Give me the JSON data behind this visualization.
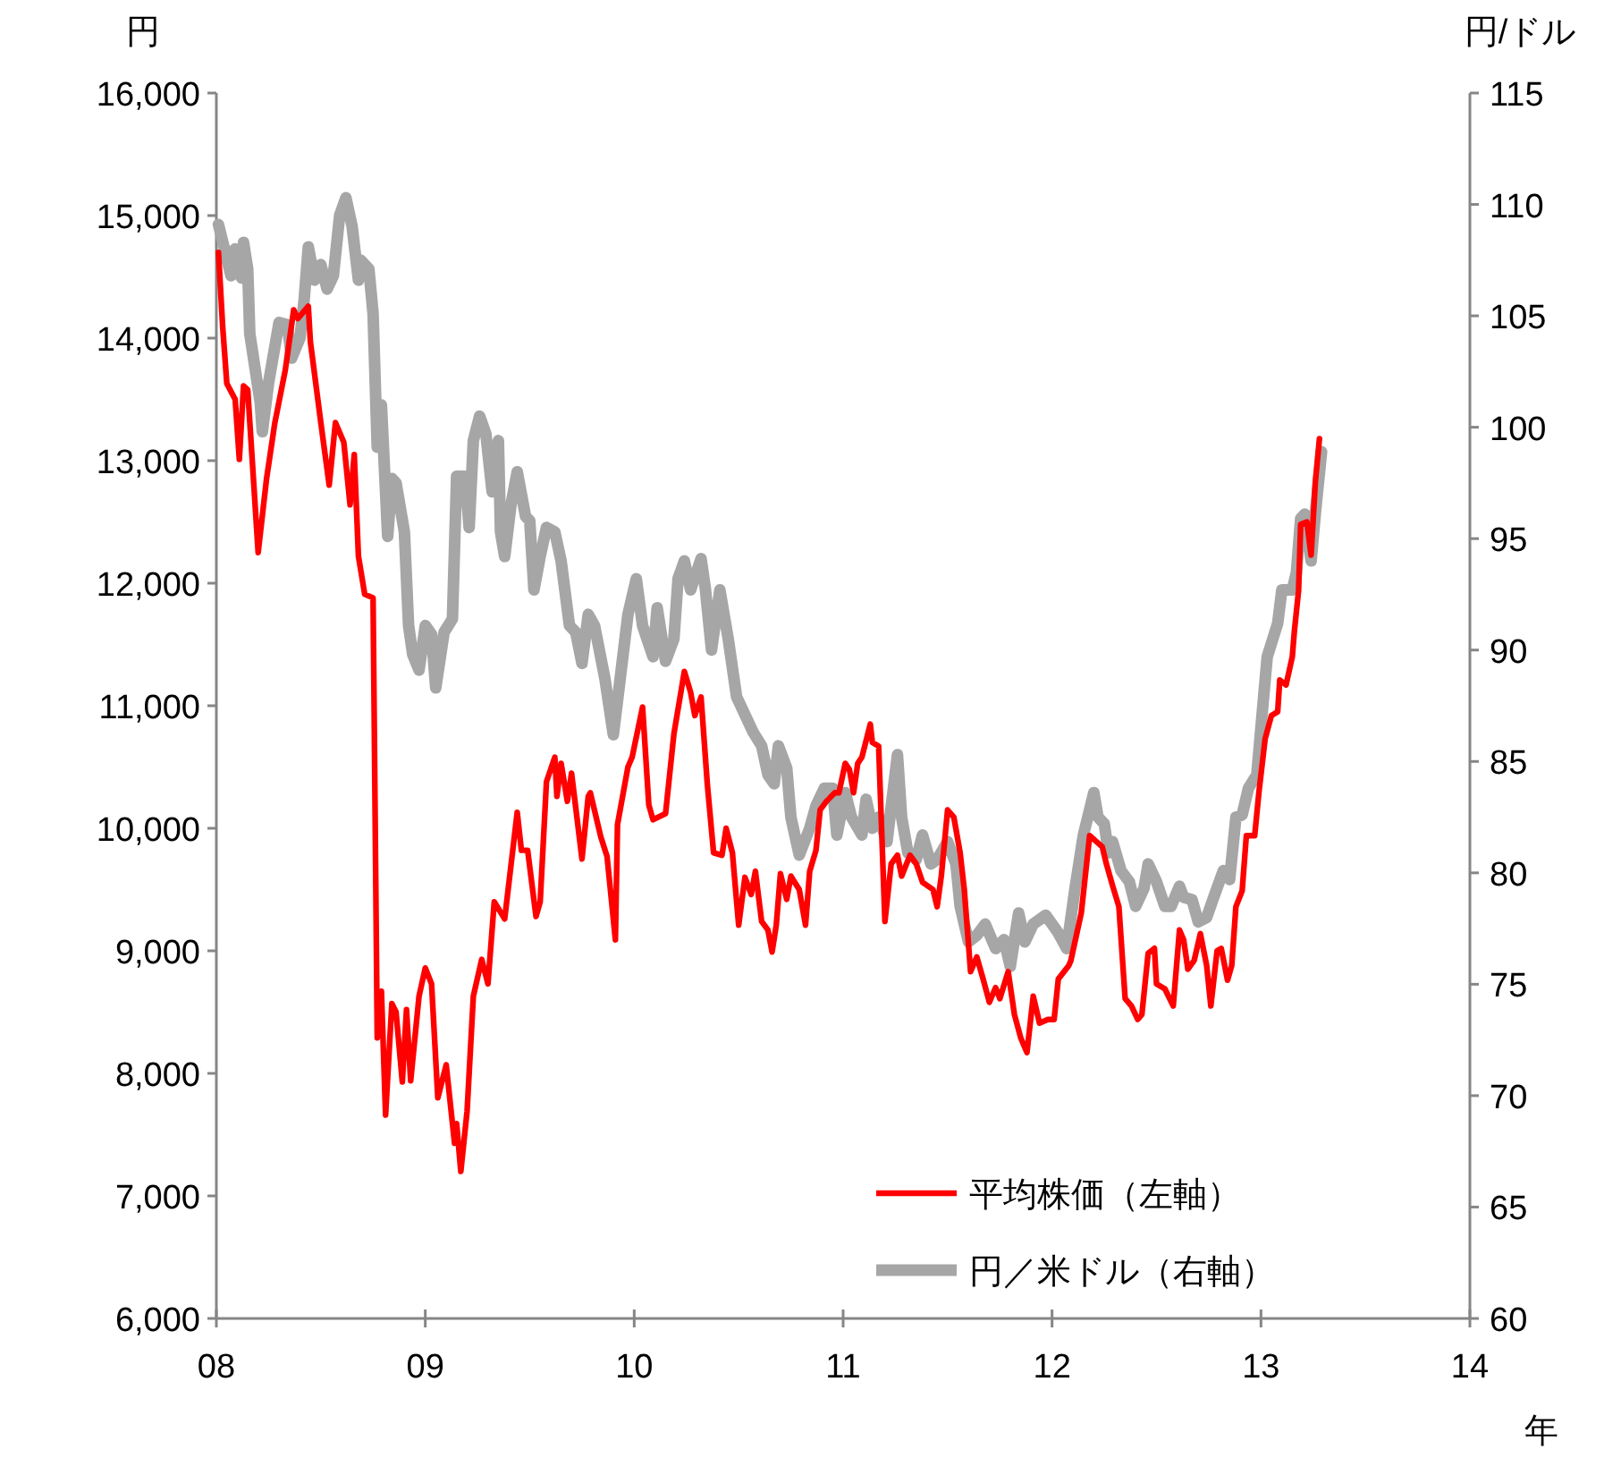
{
  "chart_data": {
    "type": "line",
    "ylabel": "円",
    "y2label": "円/ドル",
    "xlabel": "年",
    "legend": "bottom right",
    "xlim": [
      2008,
      2014
    ],
    "xticks": [
      {
        "value": 2008,
        "label": "08"
      },
      {
        "value": 2009,
        "label": "09"
      },
      {
        "value": 2010,
        "label": "10"
      },
      {
        "value": 2011,
        "label": "11"
      },
      {
        "value": 2012,
        "label": "12"
      },
      {
        "value": 2013,
        "label": "13"
      },
      {
        "value": 2014,
        "label": "14"
      }
    ],
    "ylim": [
      6000,
      16000
    ],
    "yticks": [
      {
        "value": 6000,
        "label": "6,000"
      },
      {
        "value": 7000,
        "label": "7,000"
      },
      {
        "value": 8000,
        "label": "8,000"
      },
      {
        "value": 9000,
        "label": "9,000"
      },
      {
        "value": 10000,
        "label": "10,000"
      },
      {
        "value": 11000,
        "label": "11,000"
      },
      {
        "value": 12000,
        "label": "12,000"
      },
      {
        "value": 13000,
        "label": "13,000"
      },
      {
        "value": 14000,
        "label": "14,000"
      },
      {
        "value": 15000,
        "label": "15,000"
      },
      {
        "value": 16000,
        "label": "16,000"
      }
    ],
    "y2lim": [
      60,
      115
    ],
    "y2ticks": [
      60,
      65,
      70,
      75,
      80,
      85,
      90,
      95,
      100,
      105,
      110,
      115
    ],
    "series": [
      {
        "name": "平均株価（左軸）",
        "color": "#ff0000",
        "axis": "y",
        "x": [
          2008.01,
          2008.03,
          2008.05,
          2008.09,
          2008.11,
          2008.13,
          2008.15,
          2008.2,
          2008.24,
          2008.28,
          2008.33,
          2008.37,
          2008.39,
          2008.44,
          2008.45,
          2008.5,
          2008.54,
          2008.57,
          2008.61,
          2008.64,
          2008.66,
          2008.68,
          2008.71,
          2008.75,
          2008.77,
          2008.79,
          2008.81,
          2008.84,
          2008.86,
          2008.89,
          2008.91,
          2008.93,
          2008.97,
          2009.0,
          2009.03,
          2009.06,
          2009.1,
          2009.14,
          2009.15,
          2009.17,
          2009.2,
          2009.23,
          2009.27,
          2009.3,
          2009.33,
          2009.38,
          2009.44,
          2009.46,
          2009.49,
          2009.53,
          2009.55,
          2009.58,
          2009.62,
          2009.63,
          2009.65,
          2009.68,
          2009.7,
          2009.75,
          2009.78,
          2009.79,
          2009.84,
          2009.87,
          2009.91,
          2009.92,
          2009.97,
          2009.99,
          2010.04,
          2010.07,
          2010.09,
          2010.15,
          2010.19,
          2010.24,
          2010.27,
          2010.29,
          2010.32,
          2010.35,
          2010.38,
          2010.42,
          2010.44,
          2010.47,
          2010.5,
          2010.53,
          2010.56,
          2010.58,
          2010.61,
          2010.64,
          2010.66,
          2010.68,
          2010.7,
          2010.73,
          2010.75,
          2010.79,
          2010.82,
          2010.84,
          2010.87,
          2010.89,
          2010.92,
          2010.96,
          2010.98,
          2011.01,
          2011.03,
          2011.05,
          2011.07,
          2011.09,
          2011.13,
          2011.14,
          2011.17,
          2011.2,
          2011.23,
          2011.26,
          2011.28,
          2011.32,
          2011.35,
          2011.38,
          2011.43,
          2011.45,
          2011.47,
          2011.5,
          2011.53,
          2011.56,
          2011.58,
          2011.61,
          2011.64,
          2011.67,
          2011.7,
          2011.73,
          2011.75,
          2011.79,
          2011.82,
          2011.85,
          2011.88,
          2011.91,
          2011.94,
          2011.98,
          2012.01,
          2012.03,
          2012.08,
          2012.09,
          2012.14,
          2012.18,
          2012.24,
          2012.26,
          2012.29,
          2012.32,
          2012.35,
          2012.38,
          2012.41,
          2012.43,
          2012.46,
          2012.49,
          2012.5,
          2012.54,
          2012.58,
          2012.61,
          2012.63,
          2012.65,
          2012.68,
          2012.71,
          2012.74,
          2012.76,
          2012.79,
          2012.81,
          2012.84,
          2012.86,
          2012.88,
          2012.91,
          2012.93,
          2012.97,
          2012.99,
          2013.02,
          2013.05,
          2013.08,
          2013.09,
          2013.12,
          2013.15,
          2013.16,
          2013.18,
          2013.19,
          2013.22,
          2013.24,
          2013.26,
          2013.28
        ],
        "values": [
          14700,
          14100,
          13630,
          13500,
          13010,
          13610,
          13580,
          12250,
          12850,
          13310,
          13740,
          14230,
          14160,
          14260,
          13970,
          13310,
          12800,
          13310,
          13150,
          12640,
          13050,
          12220,
          11910,
          11880,
          8290,
          8670,
          7660,
          8570,
          8500,
          7930,
          8520,
          7940,
          8630,
          8860,
          8730,
          7800,
          8070,
          7430,
          7590,
          7200,
          7690,
          8630,
          8930,
          8730,
          9400,
          9260,
          10130,
          9820,
          9820,
          9280,
          9400,
          10380,
          10580,
          10260,
          10530,
          10220,
          10450,
          9750,
          10260,
          10290,
          9930,
          9770,
          9090,
          10030,
          10500,
          10580,
          10990,
          10190,
          10070,
          10120,
          10770,
          11280,
          11110,
          10920,
          11070,
          10360,
          9800,
          9780,
          10000,
          9800,
          9210,
          9600,
          9460,
          9650,
          9240,
          9170,
          8990,
          9210,
          9630,
          9420,
          9610,
          9500,
          9210,
          9650,
          9820,
          10150,
          10220,
          10290,
          10290,
          10530,
          10480,
          10290,
          10530,
          10580,
          10850,
          10700,
          10670,
          9240,
          9710,
          9780,
          9610,
          9780,
          9710,
          9560,
          9500,
          9360,
          9610,
          10150,
          10090,
          9800,
          9500,
          8830,
          8950,
          8770,
          8580,
          8700,
          8610,
          8830,
          8480,
          8290,
          8170,
          8630,
          8410,
          8440,
          8440,
          8770,
          8880,
          8920,
          9310,
          9940,
          9850,
          9710,
          9530,
          9360,
          8610,
          8550,
          8440,
          8480,
          8980,
          9020,
          8730,
          8690,
          8550,
          9170,
          9090,
          8850,
          8920,
          9140,
          8880,
          8550,
          9000,
          9020,
          8760,
          8880,
          9360,
          9490,
          9940,
          9940,
          10290,
          10730,
          10920,
          10950,
          11210,
          11170,
          11400,
          11610,
          11940,
          12480,
          12500,
          12230,
          12820,
          13180
        ]
      },
      {
        "name": "円／米ドル（右軸）",
        "color": "#a6a6a6",
        "axis": "y2",
        "x": [
          2008.01,
          2008.07,
          2008.09,
          2008.12,
          2008.13,
          2008.15,
          2008.16,
          2008.21,
          2008.22,
          2008.25,
          2008.3,
          2008.34,
          2008.36,
          2008.4,
          2008.42,
          2008.44,
          2008.47,
          2008.5,
          2008.53,
          2008.56,
          2008.59,
          2008.62,
          2008.65,
          2008.68,
          2008.69,
          2008.73,
          2008.75,
          2008.77,
          2008.79,
          2008.82,
          2008.84,
          2008.86,
          2008.9,
          2008.92,
          2008.94,
          2008.97,
          2009.0,
          2009.03,
          2009.05,
          2009.09,
          2009.13,
          2009.15,
          2009.19,
          2009.21,
          2009.23,
          2009.26,
          2009.29,
          2009.32,
          2009.35,
          2009.36,
          2009.38,
          2009.41,
          2009.44,
          2009.48,
          2009.5,
          2009.52,
          2009.55,
          2009.58,
          2009.62,
          2009.65,
          2009.69,
          2009.72,
          2009.75,
          2009.78,
          2009.81,
          2009.86,
          2009.9,
          2009.93,
          2009.97,
          2010.01,
          2010.04,
          2010.09,
          2010.11,
          2010.15,
          2010.19,
          2010.21,
          2010.24,
          2010.27,
          2010.32,
          2010.34,
          2010.37,
          2010.41,
          2010.45,
          2010.49,
          2010.53,
          2010.57,
          2010.61,
          2010.64,
          2010.67,
          2010.69,
          2010.73,
          2010.75,
          2010.79,
          2010.84,
          2010.87,
          2010.91,
          2010.95,
          2010.97,
          2011.01,
          2011.04,
          2011.09,
          2011.11,
          2011.14,
          2011.17,
          2011.21,
          2011.26,
          2011.28,
          2011.31,
          2011.35,
          2011.38,
          2011.42,
          2011.45,
          2011.5,
          2011.54,
          2011.56,
          2011.6,
          2011.64,
          2011.68,
          2011.73,
          2011.77,
          2011.8,
          2011.84,
          2011.87,
          2011.91,
          2011.97,
          2012.03,
          2012.07,
          2012.11,
          2012.15,
          2012.2,
          2012.22,
          2012.25,
          2012.27,
          2012.29,
          2012.33,
          2012.37,
          2012.4,
          2012.44,
          2012.46,
          2012.5,
          2012.54,
          2012.57,
          2012.61,
          2012.63,
          2012.67,
          2012.7,
          2012.74,
          2012.77,
          2012.82,
          2012.85,
          2012.88,
          2012.91,
          2012.94,
          2012.98,
          2013.01,
          2013.03,
          2013.08,
          2013.1,
          2013.15,
          2013.17,
          2013.19,
          2013.21,
          2013.24,
          2013.26,
          2013.29
        ],
        "values": [
          109.1,
          106.8,
          108.0,
          106.7,
          108.3,
          107.1,
          104.2,
          101.1,
          99.8,
          102.0,
          104.7,
          104.6,
          103.1,
          104.0,
          105.7,
          108.1,
          106.6,
          107.3,
          106.2,
          106.8,
          109.5,
          110.3,
          109.0,
          106.6,
          107.5,
          107.1,
          105.1,
          99.1,
          101.0,
          95.1,
          97.7,
          97.5,
          95.3,
          91.1,
          89.8,
          89.1,
          91.1,
          90.7,
          88.3,
          90.8,
          91.4,
          97.8,
          97.8,
          95.5,
          99.4,
          100.5,
          99.7,
          97.1,
          99.4,
          95.3,
          94.2,
          96.5,
          98.0,
          96.0,
          95.8,
          92.7,
          94.2,
          95.5,
          95.3,
          94.0,
          91.1,
          90.8,
          89.4,
          91.6,
          91.1,
          88.7,
          86.2,
          88.5,
          91.6,
          93.2,
          91.1,
          89.7,
          91.9,
          89.5,
          90.5,
          93.2,
          94.0,
          92.7,
          94.1,
          92.8,
          90.0,
          92.7,
          90.5,
          87.9,
          87.1,
          86.3,
          85.7,
          84.4,
          84.0,
          85.7,
          84.7,
          82.5,
          80.8,
          82.0,
          83.0,
          83.8,
          83.8,
          81.7,
          83.6,
          82.5,
          81.7,
          83.3,
          82.0,
          82.5,
          81.4,
          85.3,
          82.5,
          80.9,
          80.6,
          81.7,
          80.4,
          80.6,
          81.4,
          80.4,
          78.5,
          76.9,
          77.2,
          77.7,
          76.6,
          77.0,
          75.8,
          78.2,
          76.9,
          77.7,
          78.1,
          77.3,
          76.6,
          79.3,
          81.7,
          83.6,
          82.5,
          82.2,
          80.9,
          81.4,
          80.1,
          79.6,
          78.5,
          79.3,
          80.4,
          79.6,
          78.5,
          78.5,
          79.4,
          78.9,
          78.8,
          77.8,
          78.0,
          78.8,
          80.1,
          79.7,
          82.5,
          82.6,
          83.8,
          84.4,
          87.6,
          89.7,
          91.2,
          92.7,
          92.7,
          93.5,
          95.9,
          96.1,
          94.0,
          96.1,
          98.9
        ]
      }
    ]
  }
}
